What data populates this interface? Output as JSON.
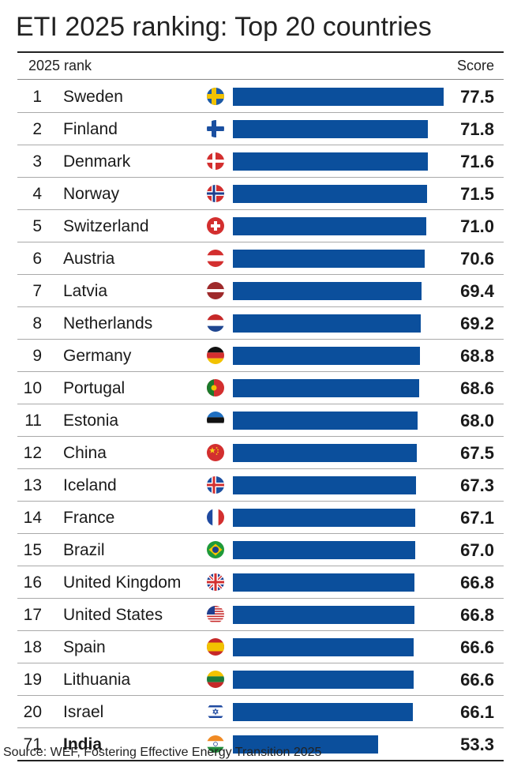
{
  "title": "ETI 2025 ranking: Top 20 countries",
  "header": {
    "rank_label": "2025 rank",
    "score_label": "Score"
  },
  "source": "Source: WEF, Fostering Effective Energy Transition 2025",
  "colors": {
    "bar": "#0b4f9c",
    "text": "#1a1a1a"
  },
  "chart_data": {
    "type": "bar",
    "orientation": "horizontal",
    "title": "ETI 2025 ranking: Top 20 countries",
    "xlabel": "",
    "ylabel": "",
    "value_label": "Score",
    "xlim": [
      0,
      77.5
    ],
    "rows": [
      {
        "rank": "1",
        "country": "Sweden",
        "flag": "sweden-flag-icon",
        "score": "77.5",
        "value": 77.5
      },
      {
        "rank": "2",
        "country": "Finland",
        "flag": "finland-flag-icon",
        "score": "71.8",
        "value": 71.8
      },
      {
        "rank": "3",
        "country": "Denmark",
        "flag": "denmark-flag-icon",
        "score": "71.6",
        "value": 71.6
      },
      {
        "rank": "4",
        "country": "Norway",
        "flag": "norway-flag-icon",
        "score": "71.5",
        "value": 71.5
      },
      {
        "rank": "5",
        "country": "Switzerland",
        "flag": "switzerland-flag-icon",
        "score": "71.0",
        "value": 71.0
      },
      {
        "rank": "6",
        "country": "Austria",
        "flag": "austria-flag-icon",
        "score": "70.6",
        "value": 70.6
      },
      {
        "rank": "7",
        "country": "Latvia",
        "flag": "latvia-flag-icon",
        "score": "69.4",
        "value": 69.4
      },
      {
        "rank": "8",
        "country": "Netherlands",
        "flag": "netherlands-flag-icon",
        "score": "69.2",
        "value": 69.2
      },
      {
        "rank": "9",
        "country": "Germany",
        "flag": "germany-flag-icon",
        "score": "68.8",
        "value": 68.8
      },
      {
        "rank": "10",
        "country": "Portugal",
        "flag": "portugal-flag-icon",
        "score": "68.6",
        "value": 68.6
      },
      {
        "rank": "11",
        "country": "Estonia",
        "flag": "estonia-flag-icon",
        "score": "68.0",
        "value": 68.0
      },
      {
        "rank": "12",
        "country": "China",
        "flag": "china-flag-icon",
        "score": "67.5",
        "value": 67.5
      },
      {
        "rank": "13",
        "country": "Iceland",
        "flag": "iceland-flag-icon",
        "score": "67.3",
        "value": 67.3
      },
      {
        "rank": "14",
        "country": "France",
        "flag": "france-flag-icon",
        "score": "67.1",
        "value": 67.1
      },
      {
        "rank": "15",
        "country": "Brazil",
        "flag": "brazil-flag-icon",
        "score": "67.0",
        "value": 67.0
      },
      {
        "rank": "16",
        "country": "United Kingdom",
        "flag": "united-kingdom-flag-icon",
        "score": "66.8",
        "value": 66.8
      },
      {
        "rank": "17",
        "country": "United States",
        "flag": "united-states-flag-icon",
        "score": "66.8",
        "value": 66.8
      },
      {
        "rank": "18",
        "country": "Spain",
        "flag": "spain-flag-icon",
        "score": "66.6",
        "value": 66.6
      },
      {
        "rank": "19",
        "country": "Lithuania",
        "flag": "lithuania-flag-icon",
        "score": "66.6",
        "value": 66.6
      },
      {
        "rank": "20",
        "country": "Israel",
        "flag": "israel-flag-icon",
        "score": "66.1",
        "value": 66.1
      },
      {
        "rank": "71",
        "country": "India",
        "flag": "india-flag-icon",
        "score": "53.3",
        "value": 53.3,
        "highlight": true
      }
    ]
  }
}
